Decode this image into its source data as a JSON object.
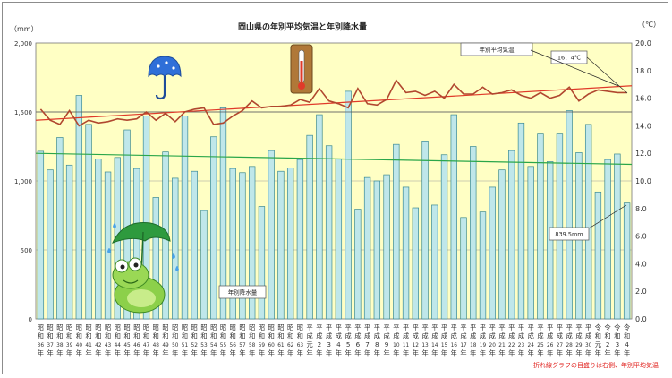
{
  "chart_data": {
    "type": "bar+line",
    "title": "岡山県の年別平均気温と年別降水量",
    "y_left_unit": "（mm）",
    "y_right_unit": "（℃）",
    "y_left_ticks": [
      "0",
      "500",
      "1,000",
      "1,500",
      "2,000"
    ],
    "y_right_ticks": [
      "0.0",
      "2.0",
      "4.0",
      "6.0",
      "8.0",
      "10.0",
      "12.0",
      "14.0",
      "16.0",
      "18.0",
      "20.0"
    ],
    "ylim_left": [
      0,
      2000
    ],
    "ylim_right": [
      0,
      20
    ],
    "categories": [
      [
        "昭",
        "和",
        "36",
        "年"
      ],
      [
        "昭",
        "和",
        "37",
        "年"
      ],
      [
        "昭",
        "和",
        "38",
        "年"
      ],
      [
        "昭",
        "和",
        "39",
        "年"
      ],
      [
        "昭",
        "和",
        "40",
        "年"
      ],
      [
        "昭",
        "和",
        "41",
        "年"
      ],
      [
        "昭",
        "和",
        "42",
        "年"
      ],
      [
        "昭",
        "和",
        "43",
        "年"
      ],
      [
        "昭",
        "和",
        "44",
        "年"
      ],
      [
        "昭",
        "和",
        "45",
        "年"
      ],
      [
        "昭",
        "和",
        "46",
        "年"
      ],
      [
        "昭",
        "和",
        "47",
        "年"
      ],
      [
        "昭",
        "和",
        "48",
        "年"
      ],
      [
        "昭",
        "和",
        "49",
        "年"
      ],
      [
        "昭",
        "和",
        "50",
        "年"
      ],
      [
        "昭",
        "和",
        "51",
        "年"
      ],
      [
        "昭",
        "和",
        "52",
        "年"
      ],
      [
        "昭",
        "和",
        "53",
        "年"
      ],
      [
        "昭",
        "和",
        "54",
        "年"
      ],
      [
        "昭",
        "和",
        "55",
        "年"
      ],
      [
        "昭",
        "和",
        "56",
        "年"
      ],
      [
        "昭",
        "和",
        "57",
        "年"
      ],
      [
        "昭",
        "和",
        "58",
        "年"
      ],
      [
        "昭",
        "和",
        "59",
        "年"
      ],
      [
        "昭",
        "和",
        "60",
        "年"
      ],
      [
        "昭",
        "和",
        "61",
        "年"
      ],
      [
        "昭",
        "和",
        "62",
        "年"
      ],
      [
        "昭",
        "和",
        "63",
        "年"
      ],
      [
        "平",
        "成",
        "元",
        "年"
      ],
      [
        "平",
        "成",
        "2",
        "年"
      ],
      [
        "平",
        "成",
        "3",
        "年"
      ],
      [
        "平",
        "成",
        "4",
        "年"
      ],
      [
        "平",
        "成",
        "5",
        "年"
      ],
      [
        "平",
        "成",
        "6",
        "年"
      ],
      [
        "平",
        "成",
        "7",
        "年"
      ],
      [
        "平",
        "成",
        "8",
        "年"
      ],
      [
        "平",
        "成",
        "9",
        "年"
      ],
      [
        "平",
        "成",
        "10",
        "年"
      ],
      [
        "平",
        "成",
        "11",
        "年"
      ],
      [
        "平",
        "成",
        "12",
        "年"
      ],
      [
        "平",
        "成",
        "13",
        "年"
      ],
      [
        "平",
        "成",
        "14",
        "年"
      ],
      [
        "平",
        "成",
        "15",
        "年"
      ],
      [
        "平",
        "成",
        "16",
        "年"
      ],
      [
        "平",
        "成",
        "17",
        "年"
      ],
      [
        "平",
        "成",
        "18",
        "年"
      ],
      [
        "平",
        "成",
        "19",
        "年"
      ],
      [
        "平",
        "成",
        "20",
        "年"
      ],
      [
        "平",
        "成",
        "21",
        "年"
      ],
      [
        "平",
        "成",
        "22",
        "年"
      ],
      [
        "平",
        "成",
        "23",
        "年"
      ],
      [
        "平",
        "成",
        "24",
        "年"
      ],
      [
        "平",
        "成",
        "25",
        "年"
      ],
      [
        "平",
        "成",
        "26",
        "年"
      ],
      [
        "平",
        "成",
        "27",
        "年"
      ],
      [
        "平",
        "成",
        "28",
        "年"
      ],
      [
        "平",
        "成",
        "29",
        "年"
      ],
      [
        "平",
        "成",
        "30",
        "年"
      ],
      [
        "令",
        "和",
        "元",
        "年"
      ],
      [
        "令",
        "和",
        "2",
        "年"
      ],
      [
        "令",
        "和",
        "3",
        "年"
      ],
      [
        "令",
        "和",
        "4",
        "年"
      ]
    ],
    "precipitation": [
      1215,
      1080,
      1315,
      1115,
      1620,
      1410,
      1160,
      1065,
      1170,
      1370,
      1090,
      1470,
      880,
      1210,
      1020,
      1470,
      1070,
      785,
      1320,
      1530,
      1090,
      1060,
      1105,
      815,
      1220,
      1070,
      1095,
      1155,
      1330,
      1480,
      1255,
      1160,
      1650,
      795,
      1025,
      1000,
      1045,
      1265,
      955,
      805,
      1290,
      825,
      1190,
      1480,
      735,
      1250,
      775,
      955,
      1080,
      1220,
      1420,
      1105,
      1340,
      1140,
      1340,
      1510,
      1205,
      1410,
      920,
      1155,
      1195,
      840
    ],
    "temperature": [
      15.2,
      14.4,
      14.1,
      15.1,
      14.0,
      14.4,
      14.2,
      14.3,
      14.5,
      14.4,
      14.5,
      15.0,
      14.4,
      14.9,
      14.3,
      15.0,
      15.2,
      15.3,
      14.1,
      14.2,
      14.7,
      15.1,
      15.8,
      15.3,
      15.4,
      15.4,
      15.5,
      15.9,
      15.7,
      16.7,
      15.8,
      15.6,
      15.3,
      16.7,
      15.6,
      15.5,
      15.9,
      17.3,
      16.4,
      16.5,
      16.2,
      16.5,
      16.0,
      17.0,
      16.3,
      16.3,
      16.8,
      16.3,
      16.4,
      16.6,
      16.2,
      16.0,
      16.4,
      16.0,
      16.2,
      16.8,
      15.8,
      16.3,
      16.6,
      16.5,
      16.4,
      16.4
    ],
    "temp_trend": [
      14.4,
      16.9
    ],
    "precip_trend": [
      1200,
      1120
    ],
    "ref_line_left": 1500,
    "labels": {
      "temp_series": "年別平均気温",
      "precip_series": "年別降水量",
      "latest_temp": "16．4℃",
      "latest_precip": "839.5mm",
      "footnote": "折れ線グラフの目盛りは右側、年別平均気温"
    },
    "colors": {
      "plot_bg": "#ffffc4",
      "bar_fill": "#bfe7ea",
      "bar_stroke": "#3c8a92",
      "temp_line": "#b0472f",
      "temp_trend": "#e03a2a",
      "precip_trend": "#2aa64a",
      "grid": "#9a9a9a"
    },
    "decorations": [
      "umbrella-icon",
      "thermometer-icon",
      "frog-icon"
    ]
  }
}
